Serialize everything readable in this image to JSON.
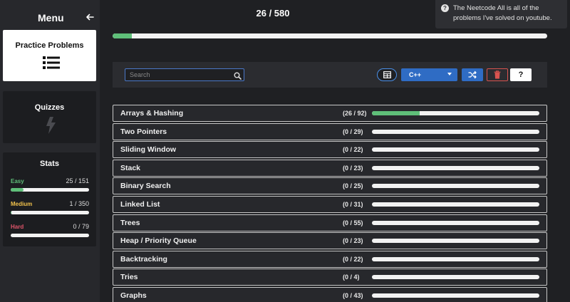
{
  "sidebar": {
    "title": "Menu",
    "back_icon": "arrow-left-icon",
    "practice": {
      "label": "Practice Problems",
      "icon": "list-icon"
    },
    "quizzes": {
      "label": "Quizzes",
      "icon": "lightning-icon"
    },
    "stats": {
      "label": "Stats",
      "items": [
        {
          "name": "Easy",
          "count": "25 / 151",
          "progress": 0.166,
          "color": "#5fbf79"
        },
        {
          "name": "Medium",
          "count": "1 / 350",
          "progress": 0.003,
          "color": "#f0c14b"
        },
        {
          "name": "Hard",
          "count": "0 / 79",
          "progress": 0,
          "color": "#e0556a"
        }
      ]
    }
  },
  "header": {
    "overall_count": "26 / 580",
    "overall_progress": 0.045,
    "tooltip": "The Neetcode All is all of the problems I've solved on youtube."
  },
  "toolbar": {
    "search_placeholder": "Search",
    "language": "C++",
    "help_label": "?"
  },
  "topics": [
    {
      "name": "Arrays & Hashing",
      "count": "(26 / 92)",
      "progress": 0.283
    },
    {
      "name": "Two Pointers",
      "count": "(0 / 29)",
      "progress": 0
    },
    {
      "name": "Sliding Window",
      "count": "(0 / 22)",
      "progress": 0
    },
    {
      "name": "Stack",
      "count": "(0 / 23)",
      "progress": 0
    },
    {
      "name": "Binary Search",
      "count": "(0 / 25)",
      "progress": 0
    },
    {
      "name": "Linked List",
      "count": "(0 / 31)",
      "progress": 0
    },
    {
      "name": "Trees",
      "count": "(0 / 55)",
      "progress": 0
    },
    {
      "name": "Heap / Priority Queue",
      "count": "(0 / 23)",
      "progress": 0
    },
    {
      "name": "Backtracking",
      "count": "(0 / 22)",
      "progress": 0
    },
    {
      "name": "Tries",
      "count": "(0 / 4)",
      "progress": 0
    },
    {
      "name": "Graphs",
      "count": "(0 / 43)",
      "progress": 0
    }
  ],
  "colors": {
    "accent_green": "#5fbf79",
    "primary_blue": "#2f6cc4",
    "danger_red": "#d9534f"
  }
}
